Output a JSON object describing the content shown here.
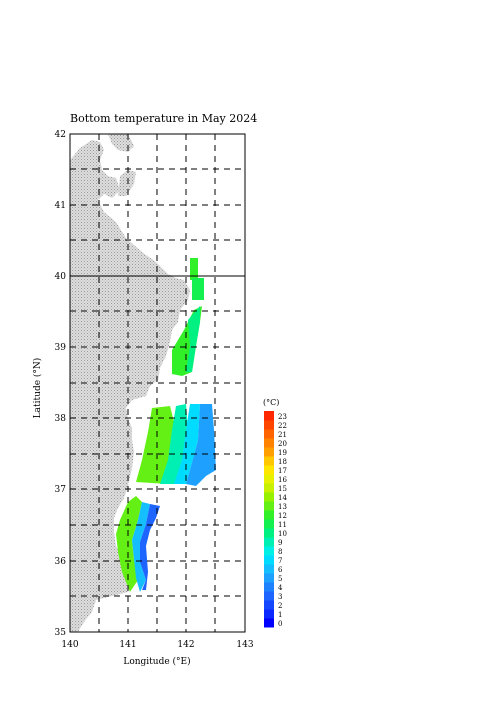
{
  "title": "Bottom temperature in May 2024",
  "xlabel": "Longitude (°E)",
  "ylabel": "Latitude (°N)",
  "x_ticks": [
    "140",
    "141",
    "142",
    "143"
  ],
  "y_ticks": [
    "42",
    "41",
    "40",
    "39",
    "38",
    "37",
    "36",
    "35"
  ],
  "colorbar": {
    "unit": "(°C)",
    "labels": [
      "0",
      "1",
      "2",
      "3",
      "4",
      "5",
      "6",
      "7",
      "8",
      "9",
      "10",
      "11",
      "12",
      "13",
      "14",
      "15",
      "16",
      "17",
      "18",
      "19",
      "20",
      "21",
      "22",
      "23"
    ],
    "colors": [
      "#0000ff",
      "#0a28ff",
      "#1446ff",
      "#1e64ff",
      "#1e82ff",
      "#1ea0ff",
      "#14beff",
      "#00dcff",
      "#00f0e6",
      "#00f0b4",
      "#00f082",
      "#14f050",
      "#32f028",
      "#64f014",
      "#96f000",
      "#c8f000",
      "#e6f000",
      "#ffe600",
      "#ffc800",
      "#ffa000",
      "#ff8200",
      "#ff6400",
      "#ff4600",
      "#ff2800"
    ]
  },
  "land_color": "#cdcdcd",
  "chart_data": {
    "type": "heatmap",
    "title": "Bottom temperature in May 2024",
    "xlabel": "Longitude (°E)",
    "ylabel": "Latitude (°N)",
    "xlim": [
      140,
      143
    ],
    "ylim": [
      35,
      42
    ],
    "grid": true,
    "colorbar_range_degC": [
      0,
      23
    ],
    "regions": [
      {
        "lat_range": [
          39.6,
          40.25
        ],
        "lon_range": [
          142.05,
          142.2
        ],
        "approx_temp_degC": [
          10,
          11
        ]
      },
      {
        "lat_range": [
          38.6,
          39.6
        ],
        "lon_range": [
          141.8,
          142.25
        ],
        "approx_temp_degC": [
          9,
          12
        ]
      },
      {
        "lat_range": [
          37.1,
          38.2
        ],
        "lon_range": [
          141.0,
          142.4
        ],
        "approx_temp_degC": [
          3,
          12
        ]
      },
      {
        "lat_range": [
          35.6,
          36.9
        ],
        "lon_range": [
          140.8,
          141.3
        ],
        "approx_temp_degC": [
          3,
          13
        ]
      }
    ]
  }
}
